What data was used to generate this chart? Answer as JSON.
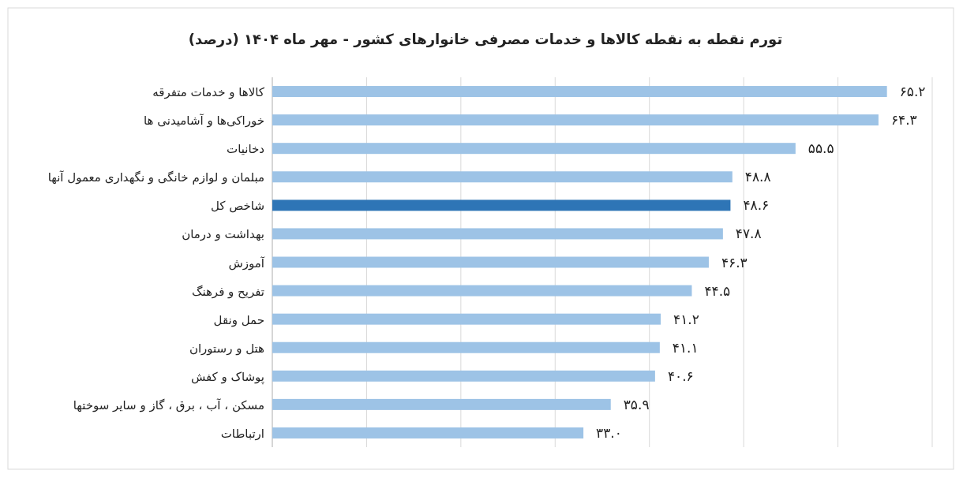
{
  "chart_data": {
    "type": "bar",
    "orientation": "horizontal",
    "title": "تورم نقطه به نقطه کالاها و خدمات مصرفی خانوارهای کشور - مهر ماه ۱۴۰۴ (درصد)",
    "categories": [
      "کالاها و خدمات متفرقه",
      "خوراکی‌ها و آشامیدنی ها",
      "دخانیات",
      "مبلمان و لوازم خانگی و نگهداری معمول آنها",
      "شاخص کل",
      "بهداشت و درمان",
      "آموزش",
      "تفریح و فرهنگ",
      "حمل ونقل",
      "هتل و رستوران",
      "پوشاک و کفش",
      "مسکن ، آب ، برق ، گاز و سایر سوختها",
      "ارتباطات"
    ],
    "values": [
      65.2,
      64.3,
      55.5,
      48.8,
      48.6,
      47.8,
      46.3,
      44.5,
      41.2,
      41.1,
      40.6,
      35.9,
      33.0
    ],
    "colors": [
      "#9dc3e6",
      "#9dc3e6",
      "#9dc3e6",
      "#9dc3e6",
      "#2e75b6",
      "#9dc3e6",
      "#9dc3e6",
      "#9dc3e6",
      "#9dc3e6",
      "#9dc3e6",
      "#9dc3e6",
      "#9dc3e6",
      "#9dc3e6"
    ],
    "value_labels": [
      "۶۵.۲",
      "۶۴.۳",
      "۵۵.۵",
      "۴۸.۸",
      "۴۸.۶",
      "۴۷.۸",
      "۴۶.۳",
      "۴۴.۵",
      "۴۱.۲",
      "۴۱.۱",
      "۴۰.۶",
      "۳۵.۹",
      "۳۳.۰"
    ],
    "xlim": [
      0,
      70
    ],
    "xticks": [
      {
        "value": 0,
        "label": null
      },
      {
        "value": 10,
        "label": null
      },
      {
        "value": 20,
        "label": null
      },
      {
        "value": 30,
        "label": null
      },
      {
        "value": 40,
        "label": null
      },
      {
        "value": 50,
        "label": null
      },
      {
        "value": 60,
        "label": null
      },
      {
        "value": 70,
        "label": null
      }
    ],
    "grid": "x",
    "tick_labels": "y"
  }
}
